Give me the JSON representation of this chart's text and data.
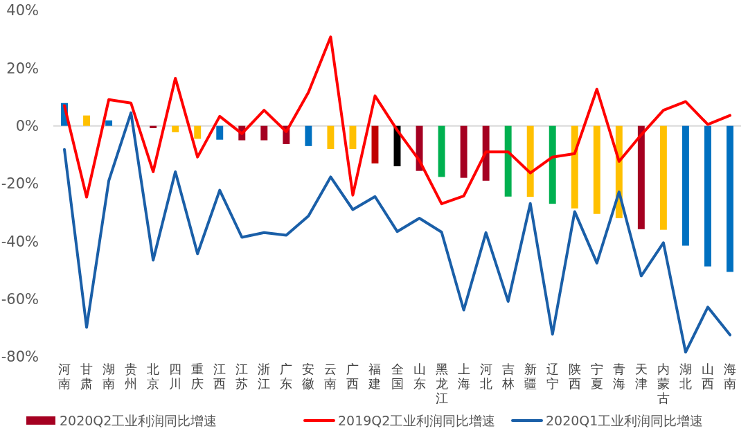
{
  "chart_data": {
    "type": "bar",
    "categories": [
      "河南",
      "甘肃",
      "湖南",
      "贵州",
      "北京",
      "四川",
      "重庆",
      "江西",
      "江苏",
      "浙江",
      "广东",
      "安徽",
      "云南",
      "广西",
      "福建",
      "全国",
      "山东",
      "黑龙江",
      "上海",
      "河北",
      "吉林",
      "新疆",
      "辽宁",
      "陕西",
      "宁夏",
      "青海",
      "天津",
      "内蒙古",
      "湖北",
      "山西",
      "海南"
    ],
    "series": [
      {
        "name": "2020Q2工业利润同比增速",
        "color": "#a50021",
        "colors": [
          "#0070c0",
          "#ffc000",
          "#0070c0",
          "#0070c0",
          "#a50021",
          "#ffc000",
          "#ffc000",
          "#0070c0",
          "#a50021",
          "#a50021",
          "#a50021",
          "#0070c0",
          "#ffc000",
          "#ffc000",
          "#c00000",
          "#000000",
          "#a50021",
          "#00b050",
          "#a50021",
          "#a50021",
          "#00b050",
          "#ffc000",
          "#00b050",
          "#ffc000",
          "#ffc000",
          "#ffc000",
          "#a50021",
          "#ffc000",
          "#0070c0",
          "#0070c0",
          "#0070c0"
        ],
        "values": [
          7.9,
          3.6,
          1.9,
          0,
          -0.8,
          -2.2,
          -4.5,
          -4.8,
          -5,
          -5,
          -6.3,
          -7,
          -8,
          -8,
          -13,
          -14,
          -15.6,
          -17.7,
          -18,
          -19,
          -24.5,
          -24.6,
          -27,
          -28.6,
          -30.5,
          -32,
          -35.8,
          -36,
          -41.5,
          -48.7,
          -50.6
        ]
      },
      {
        "name": "2019Q2工业利润同比增速",
        "type": "line",
        "color": "#ff0000",
        "values": [
          7,
          -24.7,
          9.1,
          7.9,
          -15.9,
          16.5,
          -10.8,
          3.3,
          -2.7,
          5.4,
          -2,
          11.6,
          30.8,
          -24,
          10.4,
          -1.5,
          -12,
          -27,
          -24.3,
          -9,
          -9,
          -16.3,
          -10.8,
          -9.6,
          12.7,
          -12.3,
          -3.1,
          5.4,
          8.4,
          0.5,
          3.6
        ]
      },
      {
        "name": "2020Q1工业利润同比增速",
        "type": "line",
        "color": "#1a5fa8",
        "values": [
          -8.2,
          -69.8,
          -19,
          4.5,
          -46.5,
          -15.9,
          -44.3,
          -22.3,
          -38.6,
          -37,
          -37.9,
          -31.2,
          -17.7,
          -29,
          -24.5,
          -36.6,
          -32,
          -36.8,
          -63.8,
          -37,
          -60.8,
          -26.9,
          -72.2,
          -29.7,
          -47.5,
          -22.9,
          -52,
          -40.5,
          -78.4,
          -62.8,
          -72.4
        ]
      }
    ],
    "ylim": [
      -80,
      40
    ],
    "yticks": [
      {
        "value": 40,
        "label": "40%"
      },
      {
        "value": 20,
        "label": "20%"
      },
      {
        "value": 0,
        "label": "0%"
      },
      {
        "value": -20,
        "label": "-20%"
      },
      {
        "value": -40,
        "label": "-40%"
      },
      {
        "value": -60,
        "label": "-60%"
      },
      {
        "value": -80,
        "label": "-80%"
      }
    ],
    "legend": "bottom",
    "line_style": "solid",
    "marker": "none"
  }
}
